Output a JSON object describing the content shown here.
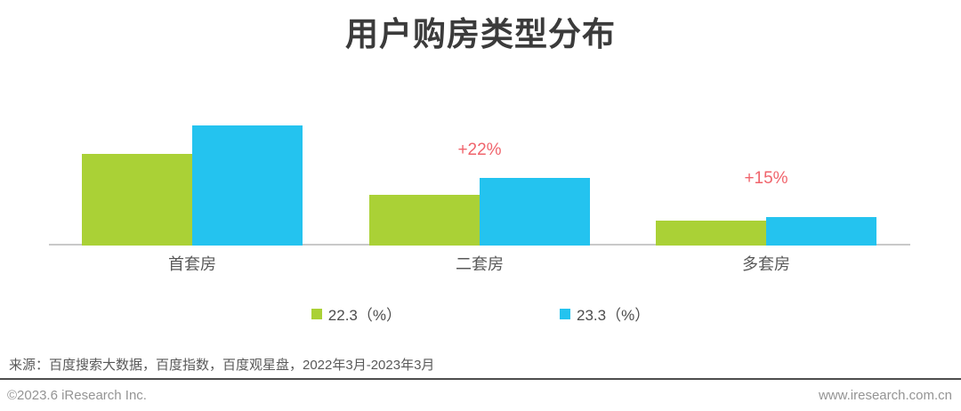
{
  "chart_data": {
    "type": "bar",
    "title": "用户购房类型分布",
    "categories": [
      "首套房",
      "二套房",
      "多套房"
    ],
    "series": [
      {
        "name": "22.3（%）",
        "color": "#aad136",
        "values": [
          76,
          42,
          21
        ]
      },
      {
        "name": "23.3（%）",
        "color": "#24c3ef",
        "values": [
          100,
          56,
          24
        ]
      }
    ],
    "values_note": "no value axis shown; values estimated as % of tallest bar",
    "annotations": [
      {
        "category": "二套房",
        "category_index": 1,
        "text": "+22%",
        "color": "#f0646c"
      },
      {
        "category": "多套房",
        "category_index": 2,
        "text": "+15%",
        "color": "#f0646c"
      }
    ],
    "legend_position": "bottom-center",
    "grid": false,
    "axis_line_color": "#c9c9c9"
  },
  "footer": {
    "source": "来源：百度搜索大数据，百度指数，百度观星盘，2022年3月-2023年3月",
    "copyright": "©2023.6 iResearch Inc.",
    "website": "www.iresearch.com.cn"
  }
}
